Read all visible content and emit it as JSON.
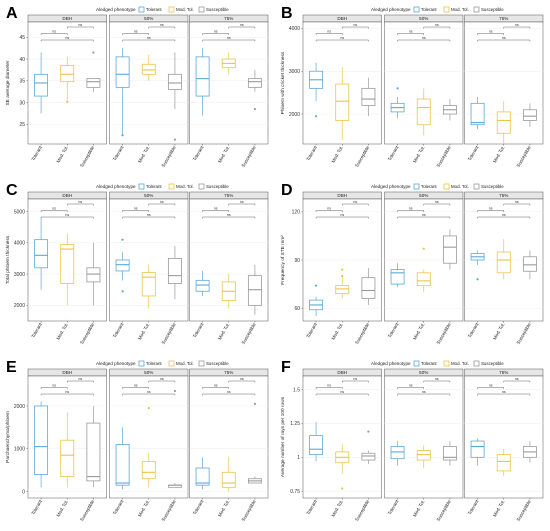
{
  "figure": {
    "x_categories": [
      "Tolerant",
      "Mod. Tol.",
      "Susceptible"
    ],
    "facet_labels": [
      "DBH",
      "50%",
      "75%"
    ],
    "legend_title": "Aledged phenotype",
    "legend_items": [
      "Tolerant",
      "Mod. Tol.",
      "Susceptible"
    ],
    "legend_title_panel_D": "Aledged phenotype",
    "colors": {
      "Tolerant": "#5aa9d6",
      "Mod. Tol.": "#e8c547",
      "Susceptible": "#9a9a9a",
      "facet_strip": "#e6e6e6",
      "gridline": "#ececec"
    },
    "sig_label": "ns"
  },
  "chart_data": [
    {
      "panel": "A",
      "type": "boxplot",
      "ylabel": "SE average diameter",
      "yticks": [
        25,
        30,
        35,
        40,
        45
      ],
      "ylim": [
        20.5,
        48.5
      ],
      "facets": [
        {
          "label": "DBH",
          "boxes": [
            {
              "q1": 31.5,
              "med": 34.5,
              "q3": 36.5,
              "lo": 27.5,
              "hi": 41.5,
              "out": []
            },
            {
              "q1": 34.8,
              "med": 36.5,
              "q3": 38.5,
              "lo": 30.5,
              "hi": 40.5,
              "out": [
                30.2
              ]
            },
            {
              "q1": 33.5,
              "med": 34.8,
              "q3": 35.5,
              "lo": 32.5,
              "hi": 35.5,
              "out": [
                41.5
              ]
            }
          ]
        },
        {
          "label": "50%",
          "boxes": [
            {
              "q1": 33.5,
              "med": 36.5,
              "q3": 40.5,
              "lo": 22.5,
              "hi": 42.5,
              "out": [
                22.5
              ]
            },
            {
              "q1": 36.5,
              "med": 37.5,
              "q3": 38.8,
              "lo": 35.0,
              "hi": 41.0,
              "out": []
            },
            {
              "q1": 33.0,
              "med": 34.5,
              "q3": 36.5,
              "lo": 28.5,
              "hi": 41.5,
              "out": [
                21.5
              ]
            }
          ]
        },
        {
          "label": "75%",
          "boxes": [
            {
              "q1": 31.5,
              "med": 35.5,
              "q3": 40.5,
              "lo": 27.0,
              "hi": 42.5,
              "out": []
            },
            {
              "q1": 38.0,
              "med": 39.0,
              "q3": 40.0,
              "lo": 36.5,
              "hi": 41.5,
              "out": []
            },
            {
              "q1": 33.5,
              "med": 34.8,
              "q3": 35.5,
              "lo": 32.5,
              "hi": 37.5,
              "out": [
                28.5
              ]
            }
          ]
        }
      ]
    },
    {
      "panel": "B",
      "type": "boxplot",
      "ylabel": "Phloem with cricket thickness",
      "yticks": [
        2000,
        3000,
        4000
      ],
      "ylim": [
        1300,
        4150
      ],
      "facets": [
        {
          "label": "DBH",
          "boxes": [
            {
              "q1": 2600,
              "med": 2800,
              "q3": 3000,
              "lo": 2300,
              "hi": 3200,
              "out": [
                1950
              ]
            },
            {
              "q1": 1850,
              "med": 2300,
              "q3": 2700,
              "lo": 1400,
              "hi": 3100,
              "out": []
            },
            {
              "q1": 2200,
              "med": 2350,
              "q3": 2600,
              "lo": 1950,
              "hi": 2850,
              "out": []
            }
          ]
        },
        {
          "label": "50%",
          "boxes": [
            {
              "q1": 2050,
              "med": 2150,
              "q3": 2250,
              "lo": 1900,
              "hi": 2400,
              "out": [
                2600
              ]
            },
            {
              "q1": 1750,
              "med": 2150,
              "q3": 2350,
              "lo": 1500,
              "hi": 2600,
              "out": []
            },
            {
              "q1": 2000,
              "med": 2100,
              "q3": 2200,
              "lo": 1850,
              "hi": 2350,
              "out": []
            }
          ]
        },
        {
          "label": "75%",
          "boxes": [
            {
              "q1": 1750,
              "med": 1800,
              "q3": 2250,
              "lo": 1650,
              "hi": 2400,
              "out": []
            },
            {
              "q1": 1550,
              "med": 1850,
              "q3": 2050,
              "lo": 1300,
              "hi": 2300,
              "out": []
            },
            {
              "q1": 1850,
              "med": 1950,
              "q3": 2100,
              "lo": 1700,
              "hi": 2250,
              "out": []
            }
          ]
        }
      ]
    },
    {
      "panel": "C",
      "type": "boxplot",
      "ylabel": "Total phloem thickness",
      "yticks": [
        2000,
        3000,
        4000,
        5000
      ],
      "ylim": [
        1500,
        5400
      ],
      "facets": [
        {
          "label": "DBH",
          "boxes": [
            {
              "q1": 3200,
              "med": 3600,
              "q3": 4100,
              "lo": 2500,
              "hi": 4800,
              "out": []
            },
            {
              "q1": 2700,
              "med": 3800,
              "q3": 3950,
              "lo": 2000,
              "hi": 4300,
              "out": []
            },
            {
              "q1": 2750,
              "med": 3000,
              "q3": 3200,
              "lo": 2000,
              "hi": 4000,
              "out": []
            }
          ]
        },
        {
          "label": "50%",
          "boxes": [
            {
              "q1": 3100,
              "med": 3300,
              "q3": 3450,
              "lo": 2800,
              "hi": 3700,
              "out": [
                4100,
                2450
              ]
            },
            {
              "q1": 2300,
              "med": 2900,
              "q3": 3050,
              "lo": 1900,
              "hi": 3300,
              "out": []
            },
            {
              "q1": 2700,
              "med": 2950,
              "q3": 3500,
              "lo": 2200,
              "hi": 3900,
              "out": []
            }
          ]
        },
        {
          "label": "75%",
          "boxes": [
            {
              "q1": 2450,
              "med": 2650,
              "q3": 2800,
              "lo": 2300,
              "hi": 3100,
              "out": []
            },
            {
              "q1": 2150,
              "med": 2450,
              "q3": 2750,
              "lo": 1900,
              "hi": 3000,
              "out": []
            },
            {
              "q1": 2000,
              "med": 2500,
              "q3": 2950,
              "lo": 1700,
              "hi": 3300,
              "out": []
            }
          ]
        }
      ]
    },
    {
      "panel": "D",
      "type": "boxplot",
      "ylabel": "Frequency of STE mm²",
      "yticks": [
        60,
        90,
        120
      ],
      "ylim": [
        52,
        128
      ],
      "facets": [
        {
          "label": "DBH",
          "boxes": [
            {
              "q1": 59,
              "med": 62,
              "q3": 65,
              "lo": 55,
              "hi": 67,
              "out": [
                74
              ]
            },
            {
              "q1": 69,
              "med": 72,
              "q3": 74,
              "lo": 66,
              "hi": 80,
              "out": [
                80,
                84
              ]
            },
            {
              "q1": 66,
              "med": 71,
              "q3": 79,
              "lo": 62,
              "hi": 85,
              "out": []
            }
          ]
        },
        {
          "label": "50%",
          "boxes": [
            {
              "q1": 75,
              "med": 82,
              "q3": 84,
              "lo": 73,
              "hi": 88,
              "out": []
            },
            {
              "q1": 74,
              "med": 77,
              "q3": 82,
              "lo": 70,
              "hi": 84,
              "out": [
                97
              ]
            },
            {
              "q1": 88,
              "med": 98,
              "q3": 105,
              "lo": 84,
              "hi": 109,
              "out": []
            }
          ]
        },
        {
          "label": "75%",
          "boxes": [
            {
              "q1": 90,
              "med": 92,
              "q3": 94,
              "lo": 87,
              "hi": 96,
              "out": [
                78
              ]
            },
            {
              "q1": 82,
              "med": 90,
              "q3": 95,
              "lo": 78,
              "hi": 103,
              "out": []
            },
            {
              "q1": 83,
              "med": 87,
              "q3": 92,
              "lo": 78,
              "hi": 96,
              "out": []
            }
          ]
        }
      ]
    },
    {
      "panel": "E",
      "type": "boxplot",
      "ylabel": "Parchaenchyma/phloem",
      "yticks": [
        0,
        1000,
        2000
      ],
      "ylim": [
        -150,
        2700
      ],
      "facets": [
        {
          "label": "DBH",
          "boxes": [
            {
              "q1": 400,
              "med": 1050,
              "q3": 2000,
              "lo": 100,
              "hi": 2100,
              "out": []
            },
            {
              "q1": 350,
              "med": 850,
              "q3": 1200,
              "lo": 100,
              "hi": 1850,
              "out": []
            },
            {
              "q1": 250,
              "med": 350,
              "q3": 1600,
              "lo": 100,
              "hi": 2000,
              "out": []
            }
          ]
        },
        {
          "label": "50%",
          "boxes": [
            {
              "q1": 150,
              "med": 200,
              "q3": 1100,
              "lo": 50,
              "hi": 1500,
              "out": []
            },
            {
              "q1": 300,
              "med": 450,
              "q3": 700,
              "lo": 100,
              "hi": 900,
              "out": [
                1950
              ]
            },
            {
              "q1": 100,
              "med": 150,
              "q3": 150,
              "lo": 100,
              "hi": 200,
              "out": [
                2350
              ]
            }
          ]
        },
        {
          "label": "75%",
          "boxes": [
            {
              "q1": 150,
              "med": 200,
              "q3": 550,
              "lo": 50,
              "hi": 800,
              "out": []
            },
            {
              "q1": 100,
              "med": 200,
              "q3": 450,
              "lo": 0,
              "hi": 800,
              "out": []
            },
            {
              "q1": 200,
              "med": 250,
              "q3": 300,
              "lo": 200,
              "hi": 350,
              "out": [
                2050
              ]
            }
          ]
        }
      ]
    },
    {
      "panel": "F",
      "type": "boxplot",
      "ylabel": "Average number of rays per 100 rows",
      "yticks": [
        0.75,
        1.0,
        1.25,
        1.5
      ],
      "ylim": [
        0.7,
        1.6
      ],
      "facets": [
        {
          "label": "DBH",
          "boxes": [
            {
              "q1": 1.02,
              "med": 1.06,
              "q3": 1.16,
              "lo": 0.97,
              "hi": 1.26,
              "out": []
            },
            {
              "q1": 0.96,
              "med": 1.0,
              "q3": 1.04,
              "lo": 0.88,
              "hi": 1.1,
              "out": [
                0.77
              ]
            },
            {
              "q1": 0.98,
              "med": 1.01,
              "q3": 1.03,
              "lo": 0.95,
              "hi": 1.05,
              "out": [
                1.19
              ]
            }
          ]
        },
        {
          "label": "50%",
          "boxes": [
            {
              "q1": 0.99,
              "med": 1.04,
              "q3": 1.08,
              "lo": 0.94,
              "hi": 1.12,
              "out": []
            },
            {
              "q1": 0.98,
              "med": 1.02,
              "q3": 1.05,
              "lo": 0.92,
              "hi": 1.09,
              "out": []
            },
            {
              "q1": 0.98,
              "med": 1.0,
              "q3": 1.08,
              "lo": 0.94,
              "hi": 1.12,
              "out": []
            }
          ]
        },
        {
          "label": "75%",
          "boxes": [
            {
              "q1": 1.0,
              "med": 1.08,
              "q3": 1.12,
              "lo": 0.94,
              "hi": 1.14,
              "out": []
            },
            {
              "q1": 0.9,
              "med": 0.97,
              "q3": 1.02,
              "lo": 0.86,
              "hi": 1.06,
              "out": []
            },
            {
              "q1": 1.0,
              "med": 1.04,
              "q3": 1.08,
              "lo": 0.96,
              "hi": 1.12,
              "out": []
            }
          ]
        }
      ]
    }
  ]
}
